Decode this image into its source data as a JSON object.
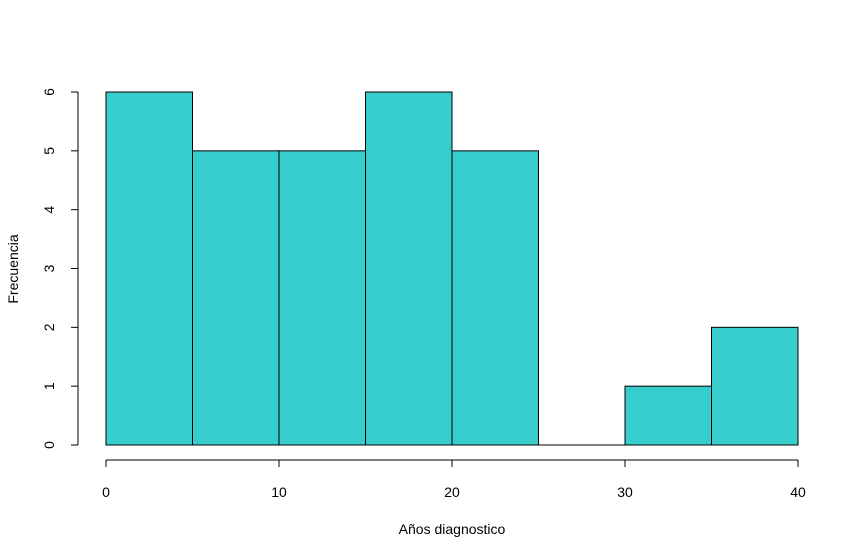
{
  "chart_data": {
    "type": "bar",
    "subtype": "histogram",
    "bins": [
      [
        0,
        5
      ],
      [
        5,
        10
      ],
      [
        10,
        15
      ],
      [
        15,
        20
      ],
      [
        20,
        25
      ],
      [
        25,
        30
      ],
      [
        30,
        35
      ],
      [
        35,
        40
      ]
    ],
    "values": [
      6,
      5,
      5,
      6,
      5,
      0,
      1,
      2
    ],
    "xlabel": "Años diagnostico",
    "ylabel": "Frecuencia",
    "xlim": [
      0,
      40
    ],
    "ylim": [
      0,
      6
    ],
    "x_ticks": [
      0,
      10,
      20,
      30,
      40
    ],
    "y_ticks": [
      0,
      1,
      2,
      3,
      4,
      5,
      6
    ],
    "bar_color": "#38CDCD",
    "border_color": "#000000",
    "grid": false
  }
}
